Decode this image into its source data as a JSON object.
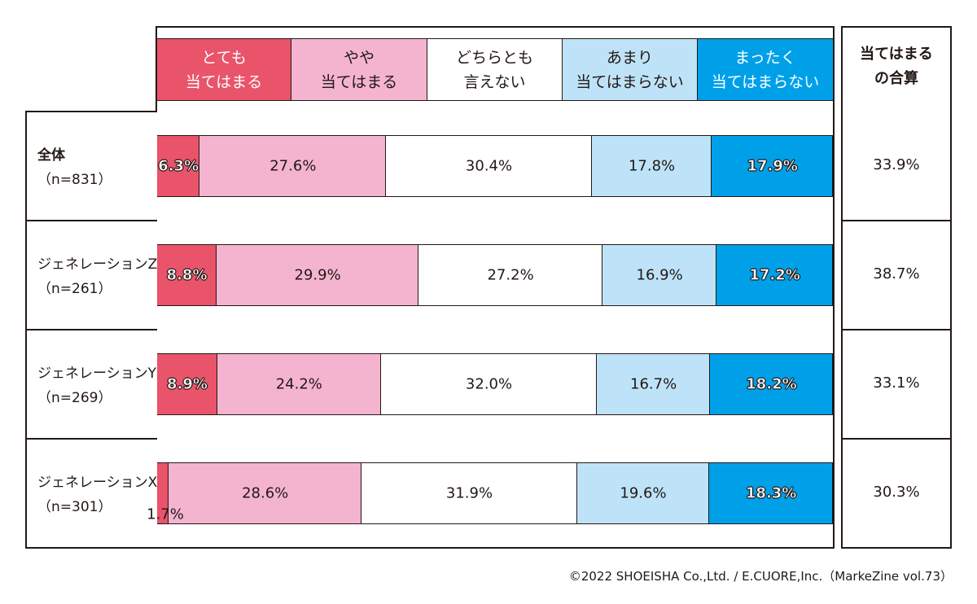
{
  "legend": [
    {
      "label": "とても\n当てはまる",
      "color": "#E9546B",
      "text": "light"
    },
    {
      "label": "やや\n当てはまる",
      "color": "#F4B4D0",
      "text": "dark"
    },
    {
      "label": "どちらとも\n言えない",
      "color": "#FFFFFF",
      "text": "dark"
    },
    {
      "label": "あまり\n当てはまらない",
      "color": "#BEE3F8",
      "text": "dark"
    },
    {
      "label": "まったく\n当てはまらない",
      "color": "#00A0E9",
      "text": "light"
    }
  ],
  "total_header": "当てはまる\nの合算",
  "credit": "©2022 SHOEISHA Co.,Ltd. / E.CUORE,Inc.（MarkeZine vol.73）",
  "chart_data": {
    "type": "bar",
    "orientation": "horizontal-stacked-100",
    "series_names": [
      "とても当てはまる",
      "やや当てはまる",
      "どちらとも言えない",
      "あまり当てはまらない",
      "まったく当てはまらない"
    ],
    "rows": [
      {
        "name": "全体",
        "n": "（n=831）",
        "values": [
          6.3,
          27.6,
          30.4,
          17.8,
          17.9
        ],
        "labels": [
          "6.3%",
          "27.6%",
          "30.4%",
          "17.8%",
          "17.9%"
        ],
        "total": "33.9%"
      },
      {
        "name": "ジェネレーションZ",
        "n": "（n=261）",
        "values": [
          8.8,
          29.9,
          27.2,
          16.9,
          17.2
        ],
        "labels": [
          "8.8%",
          "29.9%",
          "27.2%",
          "16.9%",
          "17.2%"
        ],
        "total": "38.7%"
      },
      {
        "name": "ジェネレーションY",
        "n": "（n=269）",
        "values": [
          8.9,
          24.2,
          32.0,
          16.7,
          18.2
        ],
        "labels": [
          "8.9%",
          "24.2%",
          "32.0%",
          "16.7%",
          "18.2%"
        ],
        "total": "33.1%"
      },
      {
        "name": "ジェネレーションX",
        "n": "（n=301）",
        "values": [
          1.7,
          28.6,
          31.9,
          19.6,
          18.3
        ],
        "labels": [
          "1.7%",
          "28.6%",
          "31.9%",
          "19.6%",
          "18.3%"
        ],
        "total": "30.3%"
      }
    ]
  }
}
